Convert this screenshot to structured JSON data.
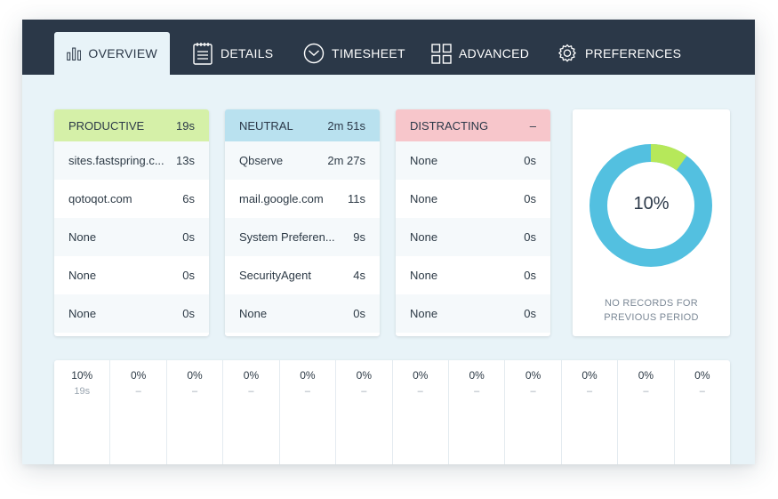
{
  "nav": {
    "tabs": [
      {
        "label": "OVERVIEW"
      },
      {
        "label": "DETAILS"
      },
      {
        "label": "TIMESHEET"
      },
      {
        "label": "ADVANCED"
      },
      {
        "label": "PREFERENCES"
      }
    ]
  },
  "categories": [
    {
      "title": "PRODUCTIVE",
      "total": "19s",
      "color": "#d5f0a8",
      "rows": [
        {
          "name": "sites.fastspring.c...",
          "time": "13s"
        },
        {
          "name": "qotoqot.com",
          "time": "6s"
        },
        {
          "name": "None",
          "time": "0s"
        },
        {
          "name": "None",
          "time": "0s"
        },
        {
          "name": "None",
          "time": "0s"
        }
      ]
    },
    {
      "title": "NEUTRAL",
      "total": "2m 51s",
      "color": "#b9e1ef",
      "rows": [
        {
          "name": "Qbserve",
          "time": "2m 27s"
        },
        {
          "name": "mail.google.com",
          "time": "11s"
        },
        {
          "name": "System Preferen...",
          "time": "9s"
        },
        {
          "name": "SecurityAgent",
          "time": "4s"
        },
        {
          "name": "None",
          "time": "0s"
        }
      ]
    },
    {
      "title": "DISTRACTING",
      "total": "–",
      "color": "#f7c6cb",
      "rows": [
        {
          "name": "None",
          "time": "0s"
        },
        {
          "name": "None",
          "time": "0s"
        },
        {
          "name": "None",
          "time": "0s"
        },
        {
          "name": "None",
          "time": "0s"
        },
        {
          "name": "None",
          "time": "0s"
        }
      ]
    }
  ],
  "summary": {
    "percent_label": "10%",
    "productive_fraction": 0.1,
    "productive_color": "#b6e85a",
    "neutral_color": "#53c0e0",
    "note_line1": "NO RECORDS FOR",
    "note_line2": "PREVIOUS PERIOD"
  },
  "hourly": [
    {
      "pct": "10%",
      "dur": "19s"
    },
    {
      "pct": "0%",
      "dur": "–"
    },
    {
      "pct": "0%",
      "dur": "–"
    },
    {
      "pct": "0%",
      "dur": "–"
    },
    {
      "pct": "0%",
      "dur": "–"
    },
    {
      "pct": "0%",
      "dur": "–"
    },
    {
      "pct": "0%",
      "dur": "–"
    },
    {
      "pct": "0%",
      "dur": "–"
    },
    {
      "pct": "0%",
      "dur": "–"
    },
    {
      "pct": "0%",
      "dur": "–"
    },
    {
      "pct": "0%",
      "dur": "–"
    },
    {
      "pct": "0%",
      "dur": "–"
    }
  ]
}
